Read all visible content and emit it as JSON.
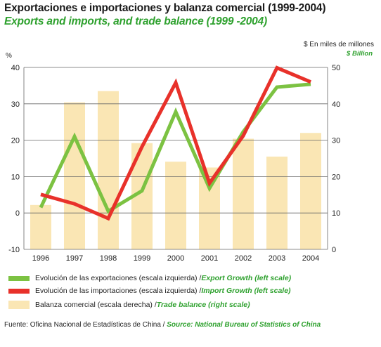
{
  "title": "Exportaciones e importaciones y balanza comercial (1999-2004)",
  "subtitle": "Exports and imports, and trade balance (1999 -2004)",
  "chart_data": {
    "type": "bar",
    "categories": [
      "1996",
      "1997",
      "1998",
      "1999",
      "2000",
      "2001",
      "2002",
      "2003",
      "2004"
    ],
    "left_axis": {
      "unit_label": "%",
      "ylim": [
        -10,
        40
      ],
      "ticks": [
        -10,
        0,
        10,
        20,
        30,
        40
      ]
    },
    "right_axis": {
      "unit_label_es": "$ En miles de millones",
      "unit_label_en": "$ Billion",
      "ylim": [
        0,
        50
      ],
      "ticks": [
        0,
        10,
        20,
        30,
        40,
        50
      ]
    },
    "series": [
      {
        "name": "Balanza comercial (escala derecha) / Trade balance (right scale)",
        "type": "bar",
        "axis": "right",
        "color": "#fae6b4",
        "values": [
          12.2,
          40.4,
          43.5,
          29.2,
          24.1,
          22.5,
          30.4,
          25.5,
          32.0
        ]
      },
      {
        "name": "Evolución de las exportaciones (escala izquierda) / Export Growth (left scale)",
        "type": "line",
        "axis": "left",
        "color": "#7cc242",
        "values": [
          1.5,
          21.0,
          0.5,
          6.1,
          27.8,
          6.8,
          22.3,
          34.6,
          35.4
        ]
      },
      {
        "name": "Evolución de las importaciones (escala izquierda) / Import Growth (left scale)",
        "type": "line",
        "axis": "left",
        "color": "#e8312a",
        "values": [
          5.1,
          2.5,
          -1.5,
          18.2,
          35.8,
          8.2,
          21.2,
          39.9,
          36.0
        ]
      }
    ],
    "grid": "horizontal"
  },
  "legend": [
    {
      "es": "Evolución de las exportaciones (escala izquierda) / ",
      "en": "Export Growth (left scale)",
      "swatch": "line-green"
    },
    {
      "es": "Evolución de las importaciones (escala izquierda) / ",
      "en": "Import Growth (left scale)",
      "swatch": "line-red"
    },
    {
      "es": "Balanza comercial (escala derecha) / ",
      "en": "Trade balance (right scale)",
      "swatch": "bar"
    }
  ],
  "source": {
    "es": "Fuente: Oficina Nacional de Estadísticas de China / ",
    "en": "Source: National Bureau of Statistics of China"
  }
}
